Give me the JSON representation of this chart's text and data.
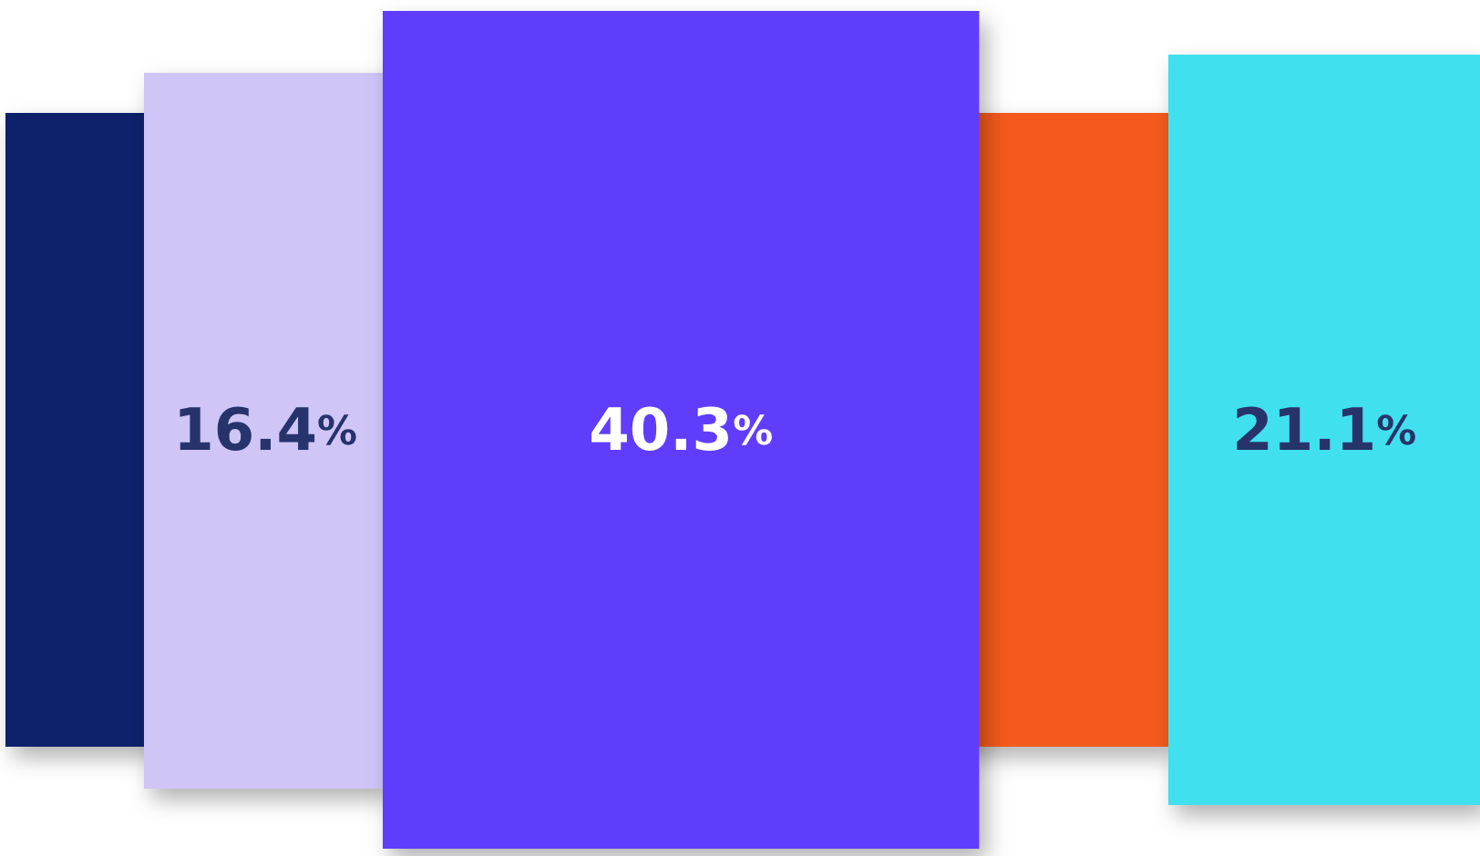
{
  "chart_data": {
    "type": "other",
    "categories": [
      null,
      null,
      null,
      null,
      null
    ],
    "values": [
      null,
      16.4,
      40.3,
      null,
      21.1
    ],
    "value_labels": [
      null,
      "16.4%",
      "40.3%",
      null,
      "21.1%"
    ],
    "colors": [
      "#0b236b",
      "#cfc5f7",
      "#613cfd",
      "#f45a1d",
      "#41e0ef"
    ]
  }
}
